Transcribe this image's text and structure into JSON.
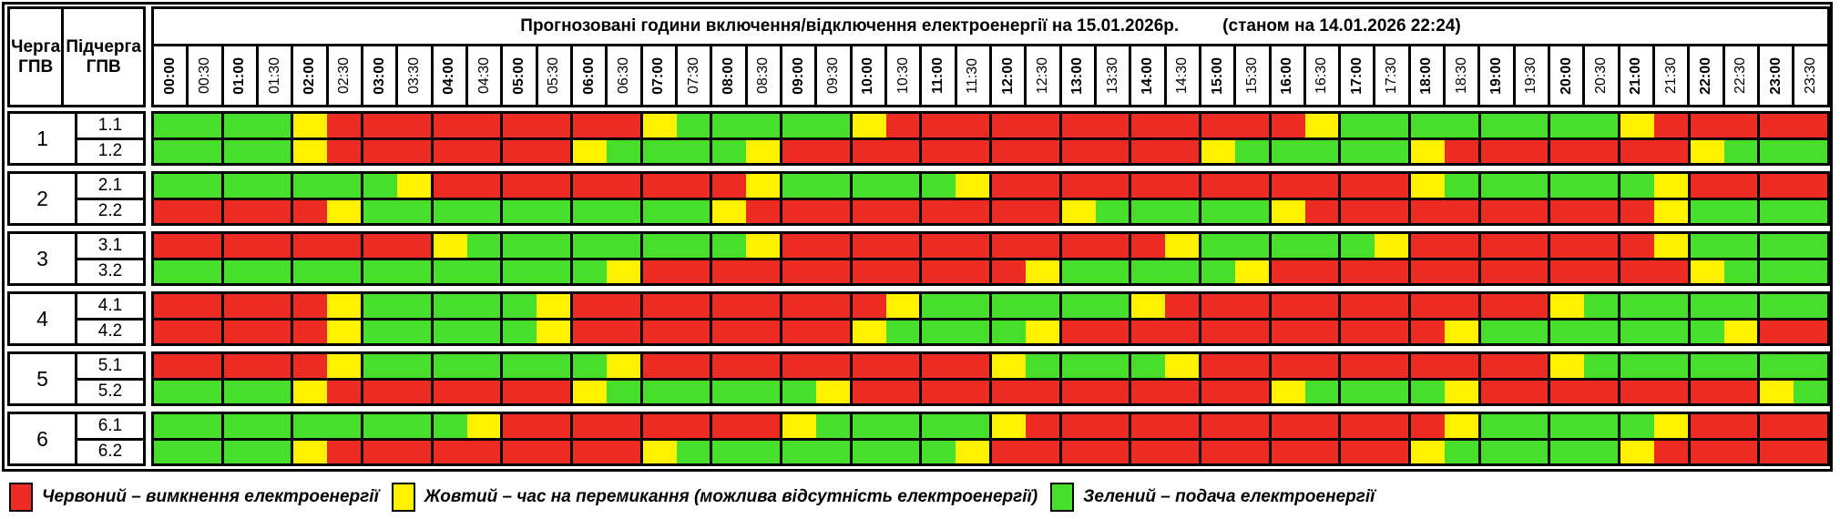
{
  "header": {
    "col1_label": "Черга ГПВ",
    "col2_label": "Підчерга ГПВ",
    "title_main": "Прогнозовані години включення/відключення електроенергії на 15.01.2026р.",
    "title_note": "(станом на 14.01.2026 22:24)"
  },
  "colors": {
    "R": "#EC2B23",
    "Y": "#FFF100",
    "G": "#47DF2C"
  },
  "chart_data": {
    "type": "heatmap",
    "title": "Прогнозовані години включення/відключення електроенергії на 15.01.2026р.",
    "status_note": "(станом на 14.01.2026 22:24)",
    "x_labels": [
      "00:00",
      "00:30",
      "01:00",
      "01:30",
      "02:00",
      "02:30",
      "03:00",
      "03:30",
      "04:00",
      "04:30",
      "05:00",
      "05:30",
      "06:00",
      "06:30",
      "07:00",
      "07:30",
      "08:00",
      "08:30",
      "09:00",
      "09:30",
      "10:00",
      "10:30",
      "11:00",
      "11:30",
      "12:00",
      "12:30",
      "13:00",
      "13:30",
      "14:00",
      "14:30",
      "15:00",
      "15:30",
      "16:00",
      "16:30",
      "17:00",
      "17:30",
      "18:00",
      "18:30",
      "19:00",
      "19:30",
      "20:00",
      "20:30",
      "21:00",
      "21:30",
      "22:00",
      "22:30",
      "23:00",
      "23:30"
    ],
    "cell_states": {
      "R": "вимкнення електроенергії",
      "Y": "час на перемикання (можлива відсутність електроенергії)",
      "G": "подача електроенергії"
    },
    "rows": [
      {
        "queue": "1",
        "subqueue": "1.1",
        "slots": "GGGGYRRRRRRR RRYGGGGGYRRR RRRRRRRRRYGG GGGGGGYRRRRR"
      },
      {
        "queue": "1",
        "subqueue": "1.2",
        "slots": "GGGGYRRRRRRR YGGGGYRRRRRR RRRRRRYGGGGG YRRRRRRRYGGG"
      },
      {
        "queue": "2",
        "subqueue": "2.1",
        "slots": "GGGGGGGYRRRR RRRRRYGGGGGY RRRRRRRRRRRR YGGGGGGYRRRR"
      },
      {
        "queue": "2",
        "subqueue": "2.2",
        "slots": "RRRRRYGGGGGG GGGGYRRRRRRR RRYGGGGGYRRR RRRRRRRYGGGG"
      },
      {
        "queue": "3",
        "subqueue": "3.1",
        "slots": "RRRRRRRRYGGG GGGGGYRRRRRR RRRRRYGGGGGY RRRRRRRYGGGG"
      },
      {
        "queue": "3",
        "subqueue": "3.2",
        "slots": "GGGGGGGGGGGG GYRRRRRRRRRR RYGGGGGYRRRR RRRRRRRRYGGG"
      },
      {
        "queue": "4",
        "subqueue": "4.1",
        "slots": "RRRRRYGGGGGY RRRRRRRRRYGG GGGGYRRRRRRR RRRRYGGGGGGG"
      },
      {
        "queue": "4",
        "subqueue": "4.2",
        "slots": "RRRRRYGGGGGY RRRRRRRRYGGG GYRRRRRRRRRR RYGGGGGGGYRR"
      },
      {
        "queue": "5",
        "subqueue": "5.1",
        "slots": "RRRRRYGGGGGG GYRRRRRRRRRR YGGGGYRRRRRR RRRRYGGGGGGG"
      },
      {
        "queue": "5",
        "subqueue": "5.2",
        "slots": "GGGGYRRRRRRR YGGGGGGYRRRR RRRRRRRRYGGG GYRRRRRRRRYG"
      },
      {
        "queue": "6",
        "subqueue": "6.1",
        "slots": "GGGGGGGGGYRR RRRRRRYGGGGG YRRRRRRRRRRR RYGGGGGYRRRR"
      },
      {
        "queue": "6",
        "subqueue": "6.2",
        "slots": "GGGGYRRRRRRR RRYGGGGGGGGY RRRRRRRRRRRR YGGGGGYRRRRR"
      }
    ]
  },
  "legend": {
    "items": [
      {
        "key": "R",
        "text": "Червоний – вимкнення електроенергії"
      },
      {
        "key": "Y",
        "text": "Жовтий – час на перемикання (можлива відсутність електроенергії)"
      },
      {
        "key": "G",
        "text": "Зелений – подача електроенергії"
      }
    ]
  }
}
